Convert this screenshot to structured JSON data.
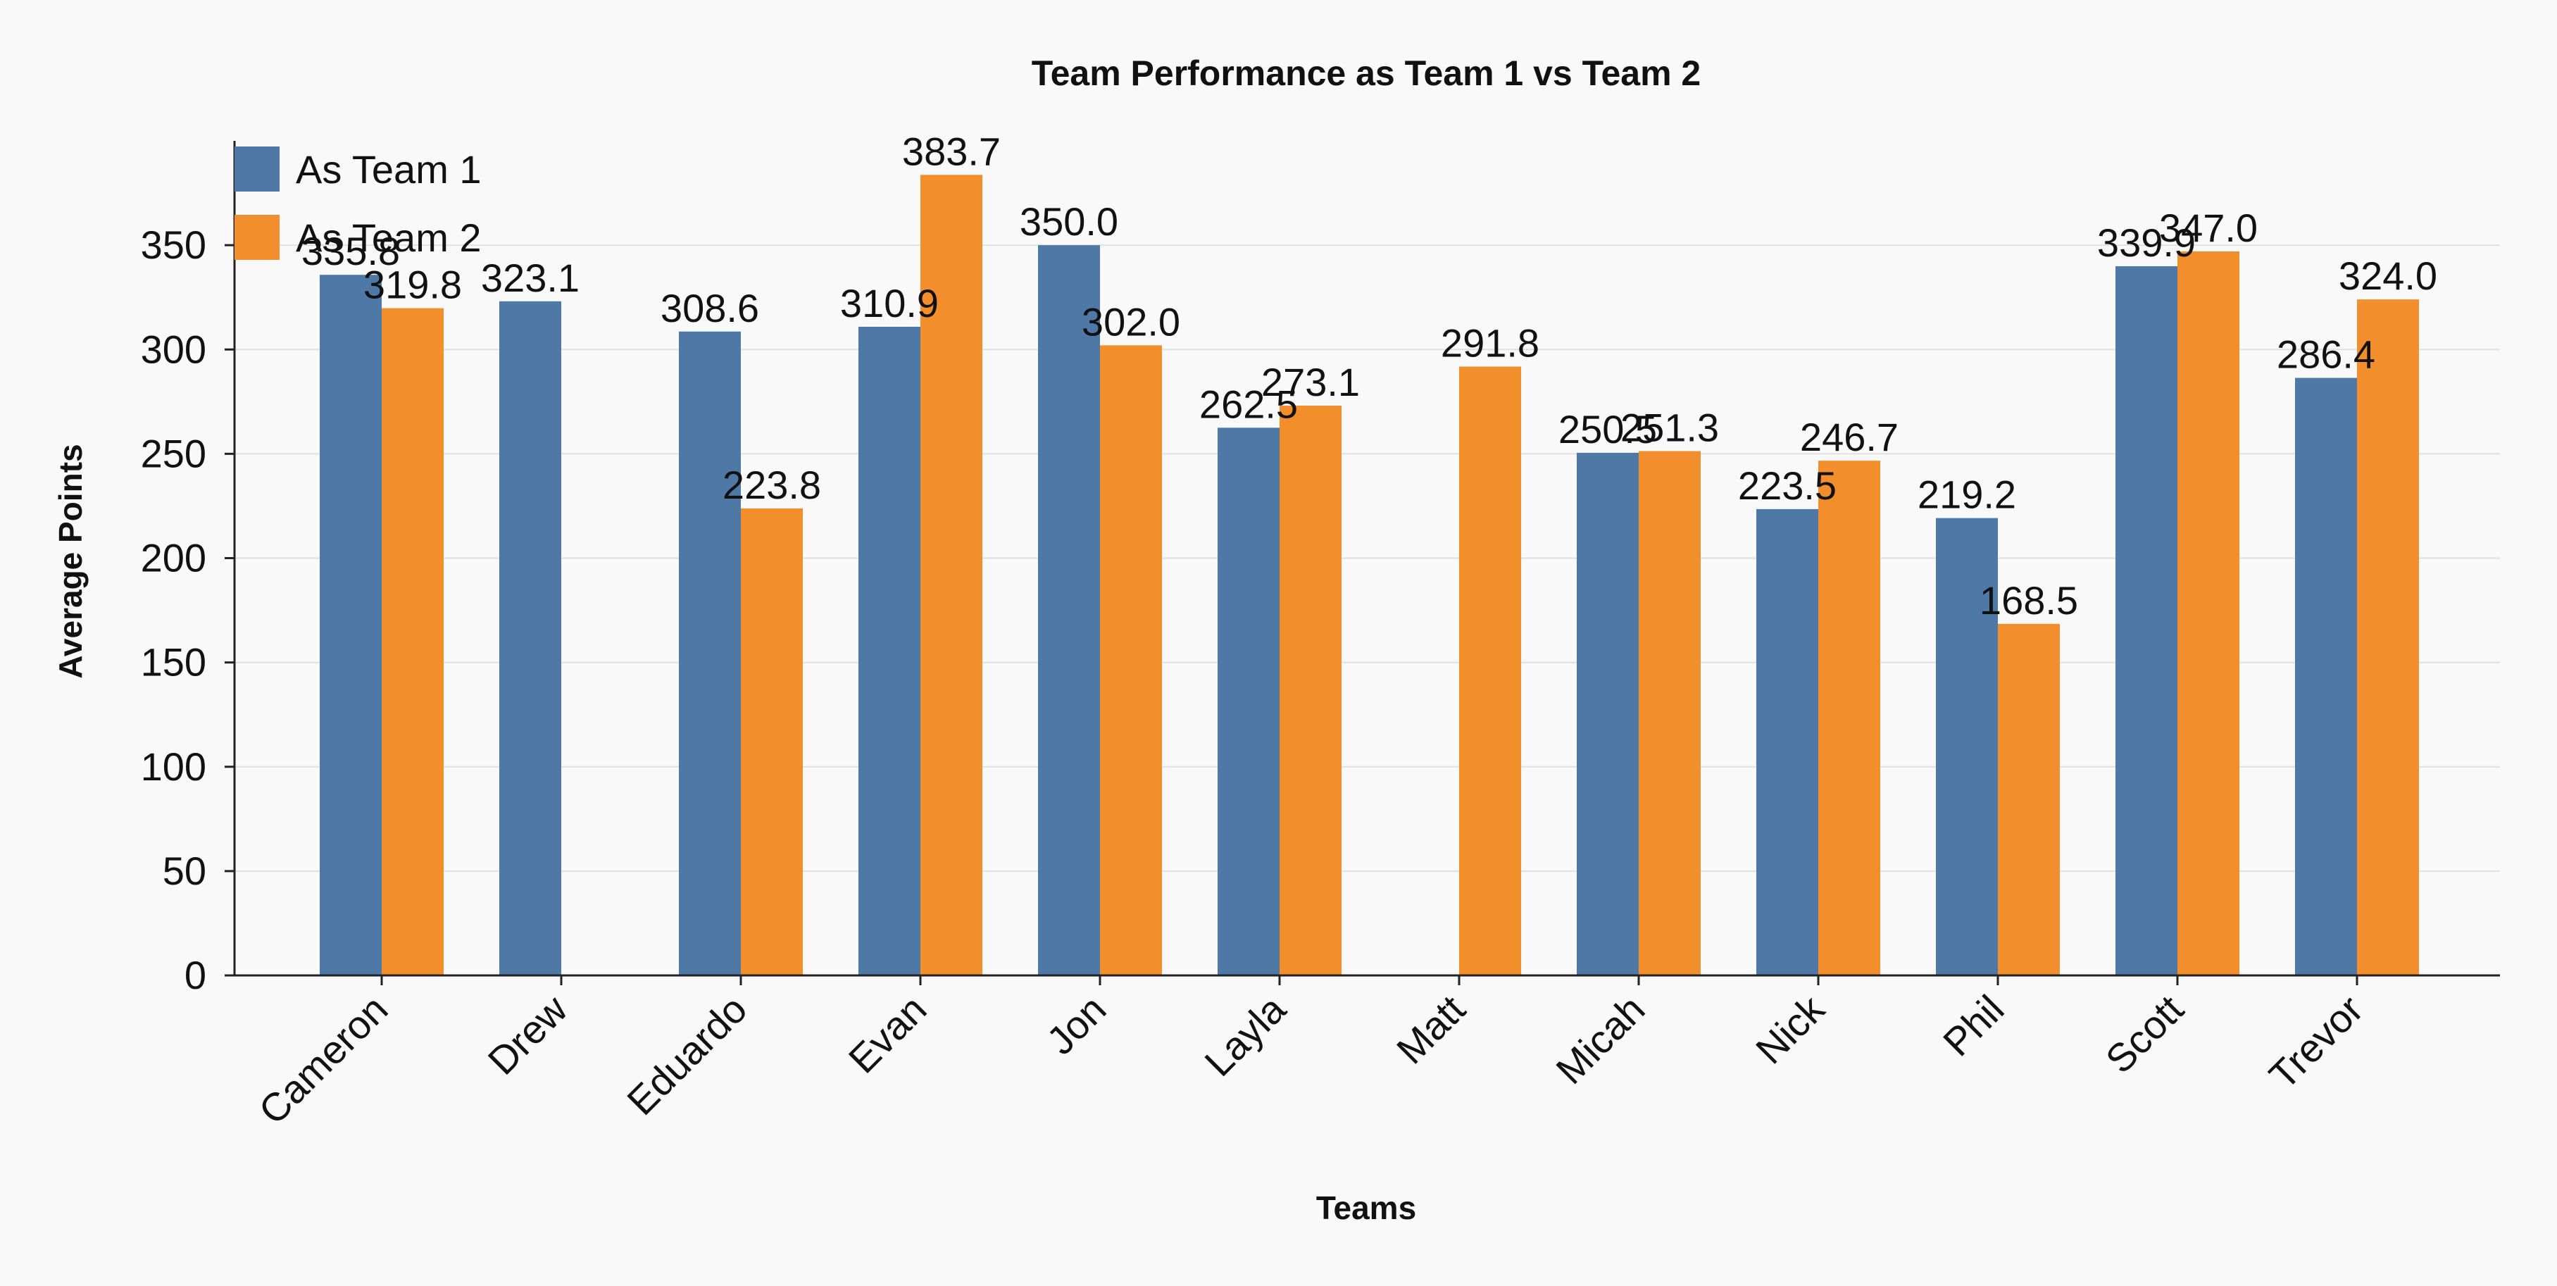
{
  "chart_data": {
    "type": "bar",
    "title": "Team Performance as Team 1 vs Team 2",
    "xlabel": "Teams",
    "ylabel": "Average Points",
    "ylim": [
      0,
      400
    ],
    "yticks": [
      0,
      50,
      100,
      150,
      200,
      250,
      300,
      350
    ],
    "grid": "horizontal",
    "legend_position": "top-left",
    "categories": [
      "Cameron",
      "Drew",
      "Eduardo",
      "Evan",
      "Jon",
      "Layla",
      "Matt",
      "Micah",
      "Nick",
      "Phil",
      "Scott",
      "Trevor"
    ],
    "series": [
      {
        "name": "As Team 1",
        "color": "#4e79a7",
        "values": [
          335.8,
          323.1,
          308.6,
          310.9,
          350.0,
          262.5,
          null,
          250.5,
          223.5,
          219.2,
          339.9,
          286.4
        ],
        "labels": [
          "335.8",
          "323.1",
          "308.6",
          "310.9",
          "350.0",
          "262.5",
          "",
          "250.5",
          "223.5",
          "219.2",
          "339.9",
          "286.4"
        ]
      },
      {
        "name": "As Team 2",
        "color": "#f28e2b",
        "values": [
          319.8,
          null,
          223.8,
          383.7,
          302.0,
          273.1,
          291.8,
          251.3,
          246.7,
          168.5,
          347.0,
          324.0
        ],
        "labels": [
          "319.8",
          "",
          "223.8",
          "383.7",
          "302.0",
          "273.1",
          "291.8",
          "251.3",
          "246.7",
          "168.5",
          "347.0",
          "324.0"
        ]
      }
    ]
  }
}
